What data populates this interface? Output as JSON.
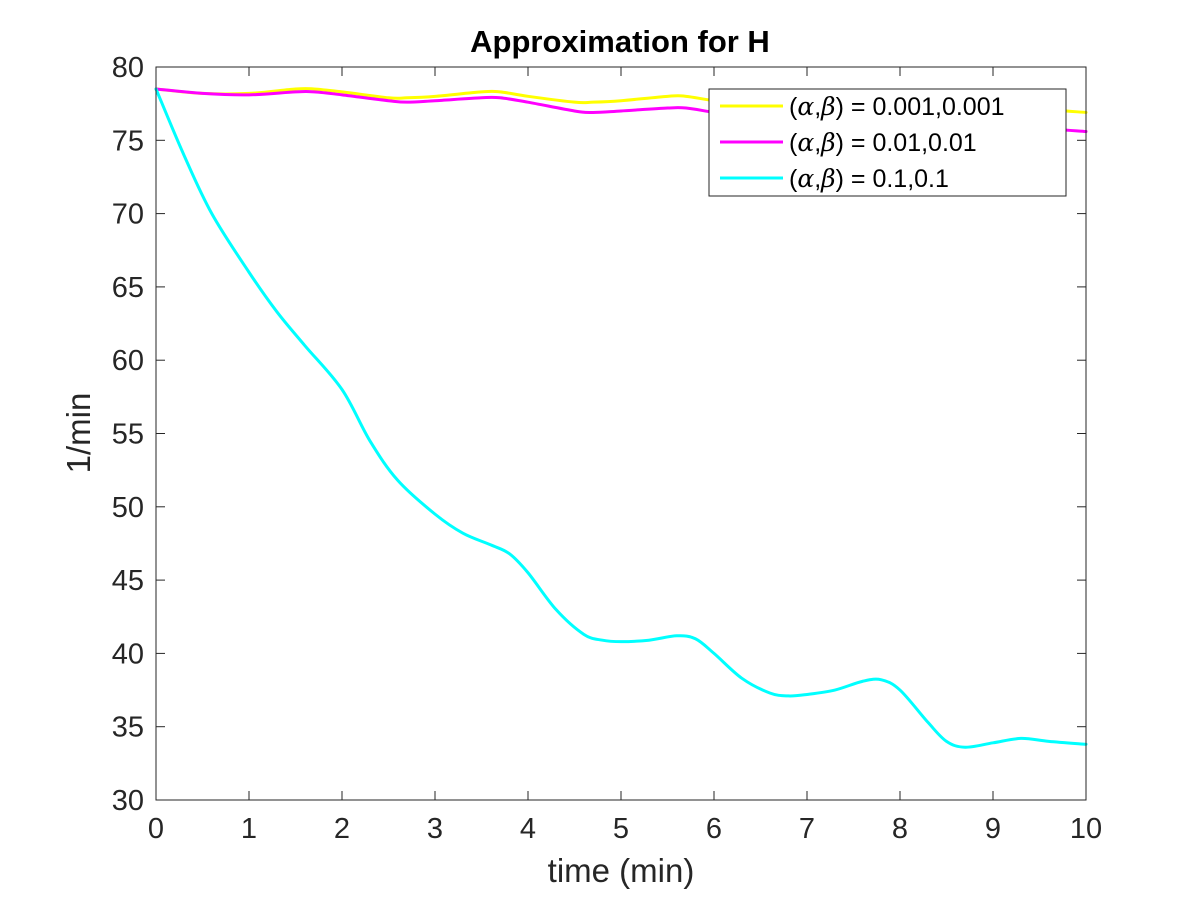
{
  "chart_data": {
    "type": "line",
    "title": "Approximation for H",
    "xlabel": "time (min)",
    "ylabel": "1/min",
    "xlim": [
      0,
      10
    ],
    "ylim": [
      30,
      80
    ],
    "xticks": [
      0,
      1,
      2,
      3,
      4,
      5,
      6,
      7,
      8,
      9,
      10
    ],
    "yticks": [
      30,
      35,
      40,
      45,
      50,
      55,
      60,
      65,
      70,
      75,
      80
    ],
    "grid": false,
    "legend_position": "top-right",
    "series": [
      {
        "name": "(α,β) = 0.001,0.001",
        "name_parts": {
          "open": "(",
          "a": "α",
          "sep": ",",
          "b": "β",
          "rest": ") = 0.001,0.001"
        },
        "color": "#ffff00",
        "x": [
          0,
          0.5,
          1,
          1.5,
          1.7,
          2,
          2.5,
          2.7,
          3,
          3.5,
          3.7,
          4,
          4.5,
          4.7,
          5,
          5.5,
          5.7,
          6,
          6.5,
          6.7,
          7,
          7.5,
          7.7,
          8,
          8.5,
          8.7,
          9,
          9.5,
          10
        ],
        "y": [
          78.5,
          78.2,
          78.2,
          78.5,
          78.5,
          78.3,
          77.9,
          77.9,
          78.0,
          78.3,
          78.3,
          78.0,
          77.6,
          77.6,
          77.7,
          78.0,
          78.0,
          77.7,
          77.3,
          77.3,
          77.4,
          77.7,
          77.7,
          77.4,
          77.0,
          77.0,
          77.1,
          77.1,
          76.9
        ]
      },
      {
        "name": "(α,β) = 0.01,0.01",
        "name_parts": {
          "open": "(",
          "a": "α",
          "sep": ",",
          "b": "β",
          "rest": ") = 0.01,0.01"
        },
        "color": "#ff00ff",
        "x": [
          0,
          0.5,
          1,
          1.5,
          1.7,
          2,
          2.5,
          2.7,
          3,
          3.5,
          3.7,
          4,
          4.5,
          4.7,
          5,
          5.5,
          5.7,
          6,
          6.5,
          6.7,
          7,
          7.5,
          7.7,
          8,
          8.5,
          8.7,
          9,
          9.5,
          10
        ],
        "y": [
          78.5,
          78.2,
          78.1,
          78.3,
          78.3,
          78.1,
          77.7,
          77.6,
          77.7,
          77.9,
          77.9,
          77.6,
          77.0,
          76.9,
          77.0,
          77.2,
          77.2,
          76.9,
          76.4,
          76.3,
          76.3,
          76.5,
          76.5,
          76.2,
          75.8,
          75.7,
          75.8,
          75.8,
          75.6
        ]
      },
      {
        "name": "(α,β) = 0.1,0.1",
        "name_parts": {
          "open": "(",
          "a": "α",
          "sep": ",",
          "b": "β",
          "rest": ") = 0.1,0.1"
        },
        "color": "#00ffff",
        "x": [
          0,
          0.3,
          0.6,
          1,
          1.3,
          1.6,
          2,
          2.3,
          2.6,
          3,
          3.3,
          3.6,
          3.8,
          4,
          4.3,
          4.6,
          4.8,
          5,
          5.3,
          5.6,
          5.8,
          6,
          6.3,
          6.6,
          6.8,
          7,
          7.3,
          7.6,
          7.8,
          8,
          8.3,
          8.5,
          8.7,
          9,
          9.3,
          9.6,
          10
        ],
        "y": [
          78.5,
          74.0,
          70.0,
          66.0,
          63.3,
          61.0,
          58.0,
          54.5,
          51.8,
          49.5,
          48.2,
          47.4,
          46.8,
          45.5,
          43.0,
          41.3,
          40.9,
          40.8,
          40.9,
          41.2,
          41.0,
          40.0,
          38.3,
          37.3,
          37.1,
          37.2,
          37.5,
          38.1,
          38.2,
          37.5,
          35.3,
          34.0,
          33.6,
          33.9,
          34.2,
          34.0,
          33.8
        ]
      }
    ]
  }
}
